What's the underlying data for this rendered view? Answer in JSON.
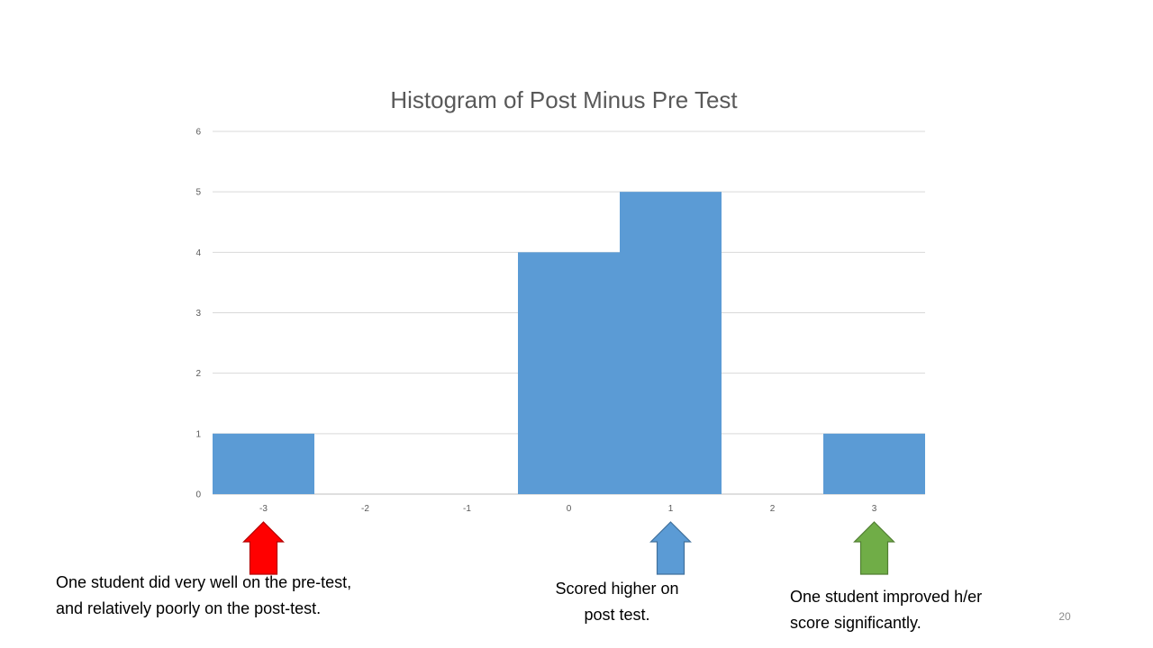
{
  "chart_data": {
    "type": "bar",
    "title": "Histogram of Post Minus Pre Test",
    "categories": [
      "-3",
      "-2",
      "-1",
      "0",
      "1",
      "2",
      "3"
    ],
    "values": [
      1,
      0,
      0,
      4,
      5,
      0,
      1
    ],
    "ylim": [
      0,
      6
    ],
    "yticks": [
      "0",
      "1",
      "2",
      "3",
      "4",
      "5",
      "6"
    ],
    "grid": true,
    "xlabel": "",
    "ylabel": "",
    "bar_color": "#5b9bd5"
  },
  "annotations": [
    {
      "text": "One student did very well on the pre-test,\nand relatively poorly on the post-test.",
      "arrow_color": "#ff0000",
      "category": "-3"
    },
    {
      "text": "Scored higher on\npost test.",
      "arrow_color": "#5b9bd5",
      "category": "1"
    },
    {
      "text": "One student improved h/er\nscore significantly.",
      "arrow_color": "#70ad47",
      "category": "3"
    }
  ],
  "slide_number": "20"
}
